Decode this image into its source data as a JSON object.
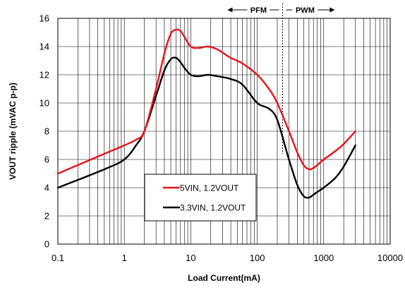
{
  "chart_data": {
    "type": "line",
    "title": "",
    "xlabel": "Load Current(mA)",
    "ylabel": "VOUT ripple (mVAC p-p)",
    "xscale": "log",
    "xlim": [
      0.1,
      10000
    ],
    "ylim": [
      0,
      16
    ],
    "x_tick_labels": [
      "0.1",
      "1",
      "10",
      "100",
      "1000",
      "10000"
    ],
    "y_tick_labels": [
      "0",
      "2",
      "4",
      "6",
      "8",
      "10",
      "12",
      "14",
      "16"
    ],
    "grid": true,
    "legend_position": "bottom-center",
    "regions": [
      {
        "label": "PFM",
        "direction": "left"
      },
      {
        "label": "PWM",
        "direction": "right"
      }
    ],
    "mode_boundary_x": 240,
    "series": [
      {
        "name": "5VIN, 1.2VOUT",
        "color": "#e8141c",
        "x": [
          0.1,
          0.5,
          1.0,
          1.5,
          2.0,
          3.0,
          4.0,
          5.0,
          6.0,
          7.0,
          8.0,
          10,
          13,
          18,
          25,
          40,
          60,
          100,
          150,
          200,
          300,
          400,
          500,
          600,
          700,
          800,
          1000,
          1500,
          2000,
          3000
        ],
        "y": [
          5.0,
          6.4,
          7.0,
          7.4,
          8.0,
          11.0,
          13.5,
          14.9,
          15.2,
          15.1,
          14.7,
          14.0,
          13.9,
          14.0,
          13.8,
          13.2,
          12.8,
          12.0,
          11.0,
          10.0,
          8.0,
          6.5,
          5.6,
          5.3,
          5.4,
          5.6,
          6.0,
          6.6,
          7.1,
          8.0
        ]
      },
      {
        "name": "3.3VIN, 1.2VOUT",
        "color": "#000000",
        "x": [
          0.1,
          0.5,
          1.0,
          1.5,
          2.0,
          3.0,
          4.0,
          5.0,
          6.0,
          7.0,
          8.0,
          10,
          13,
          18,
          25,
          40,
          60,
          100,
          150,
          200,
          300,
          400,
          500,
          600,
          700,
          800,
          1000,
          1500,
          2000,
          3000
        ],
        "y": [
          4.0,
          5.3,
          6.0,
          7.0,
          8.0,
          10.5,
          12.3,
          13.1,
          13.2,
          12.9,
          12.5,
          12.0,
          11.9,
          12.0,
          11.9,
          11.7,
          11.3,
          10.0,
          9.6,
          8.8,
          6.0,
          4.2,
          3.4,
          3.3,
          3.5,
          3.7,
          4.0,
          4.7,
          5.5,
          7.0
        ]
      }
    ]
  }
}
